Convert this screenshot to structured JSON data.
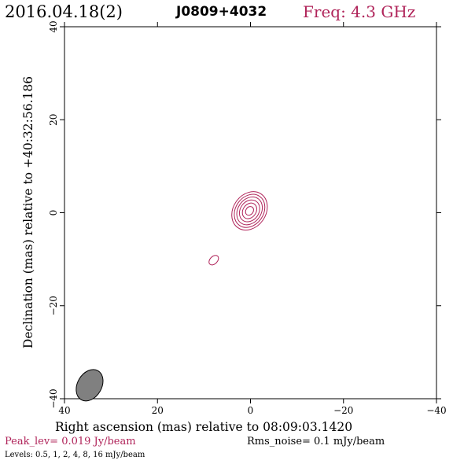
{
  "header": {
    "date": "2016.04.18(2)",
    "source": "J0809+4032",
    "frequency": "Freq: 4.3 GHz"
  },
  "footer": {
    "peak": "Peak_lev=  0.019 Jy/beam",
    "rms": "Rms_noise=   0.1 mJy/beam",
    "levels": "Levels: 0.5,    1,    2,    4,    8,   16 mJy/beam"
  },
  "colors": {
    "contour": "#b0245a",
    "beam_fill": "#808080",
    "frame": "#000000"
  },
  "chart_data": {
    "type": "contour",
    "xlabel": "Right ascension (mas) relative to 08:09:03.1420",
    "ylabel": "Declination (mas) relative to +40:32:56.186",
    "xlim": [
      40,
      -40
    ],
    "ylim": [
      -40,
      40
    ],
    "x_ticks": [
      40,
      20,
      0,
      -20,
      -40
    ],
    "y_ticks": [
      -40,
      -20,
      0,
      20,
      40
    ],
    "x_tick_labels": [
      "40",
      "20",
      "0",
      "−20",
      "−40"
    ],
    "y_tick_labels": [
      "−40",
      "−20",
      "0",
      "20",
      "40"
    ],
    "contour_levels_mJy": [
      0.5,
      1,
      2,
      4,
      8,
      16
    ],
    "peak_Jy_per_beam": 0.019,
    "rms_mJy_per_beam": 0.1,
    "components": [
      {
        "name": "core",
        "center": [
          0.2,
          0.4
        ],
        "contours": [
          {
            "level": 0.5,
            "ra_halfwidth": 3.5,
            "dec_halfheight": 4.4,
            "angle_deg": 35
          },
          {
            "level": 1,
            "ra_halfwidth": 3.0,
            "dec_halfheight": 3.8,
            "angle_deg": 35
          },
          {
            "level": 2,
            "ra_halfwidth": 2.5,
            "dec_halfheight": 3.2,
            "angle_deg": 35
          },
          {
            "level": 4,
            "ra_halfwidth": 2.0,
            "dec_halfheight": 2.5,
            "angle_deg": 35
          },
          {
            "level": 8,
            "ra_halfwidth": 1.4,
            "dec_halfheight": 1.8,
            "angle_deg": 35
          },
          {
            "level": 16,
            "ra_halfwidth": 0.8,
            "dec_halfheight": 1.0,
            "angle_deg": 35
          }
        ]
      },
      {
        "name": "knot",
        "center": [
          7.9,
          -10.2
        ],
        "contours": [
          {
            "level": 0.5,
            "ra_halfwidth": 0.8,
            "dec_halfheight": 1.2,
            "angle_deg": 45
          }
        ]
      }
    ],
    "beam": {
      "center": [
        34.6,
        -37.1
      ],
      "major": 3.6,
      "minor": 2.6,
      "angle_deg": 30
    },
    "grid": false,
    "legend": "none"
  }
}
